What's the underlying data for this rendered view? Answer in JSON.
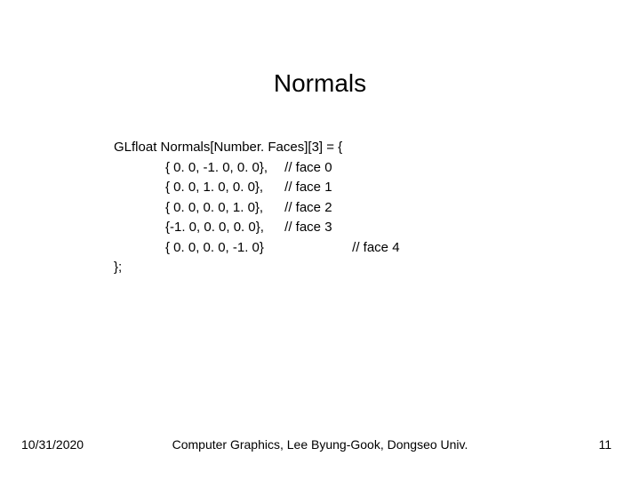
{
  "title": "Normals",
  "code": {
    "decl": "GLfloat Normals[Number. Faces][3] = {",
    "rows": [
      {
        "val": "{ 0. 0, -1. 0, 0. 0},",
        "comment": "// face 0",
        "offset": false
      },
      {
        "val": "{ 0. 0, 1. 0, 0. 0},",
        "comment": "// face 1",
        "offset": false
      },
      {
        "val": "{ 0. 0, 0. 0, 1. 0},",
        "comment": "// face 2",
        "offset": false
      },
      {
        "val": "{-1. 0, 0. 0, 0. 0},",
        "comment": "// face 3",
        "offset": false
      },
      {
        "val": "{ 0. 0, 0. 0, -1. 0}",
        "comment": "// face 4",
        "offset": true
      }
    ],
    "close": "};"
  },
  "footer": {
    "date": "10/31/2020",
    "center": "Computer Graphics, Lee Byung-Gook, Dongseo Univ.",
    "page": "11"
  }
}
